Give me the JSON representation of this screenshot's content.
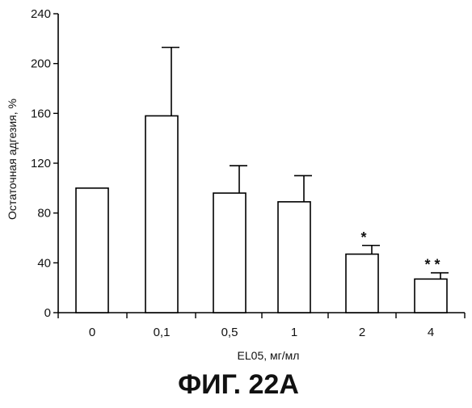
{
  "chart_data": {
    "type": "bar",
    "title": "",
    "xlabel": "EL05, мг/мл",
    "ylabel": "Остаточная адгезия, %",
    "ylim": [
      0,
      240
    ],
    "yticks": [
      "0",
      "40",
      "80",
      "120",
      "160",
      "200",
      "240"
    ],
    "categories": [
      "0",
      "0,1",
      "0,5",
      "1",
      "2",
      "4"
    ],
    "series": [
      {
        "values": [
          100,
          158,
          96,
          89,
          47,
          27
        ],
        "error_plus": [
          0,
          55,
          22,
          21,
          7,
          5
        ]
      }
    ],
    "annotations": [
      "",
      "",
      "",
      "",
      "*",
      "* *"
    ],
    "grid": false,
    "legend": "none",
    "bar_fill": "#ffffff",
    "bar_stroke": "#000000"
  },
  "caption": "ФИГ. 22А"
}
